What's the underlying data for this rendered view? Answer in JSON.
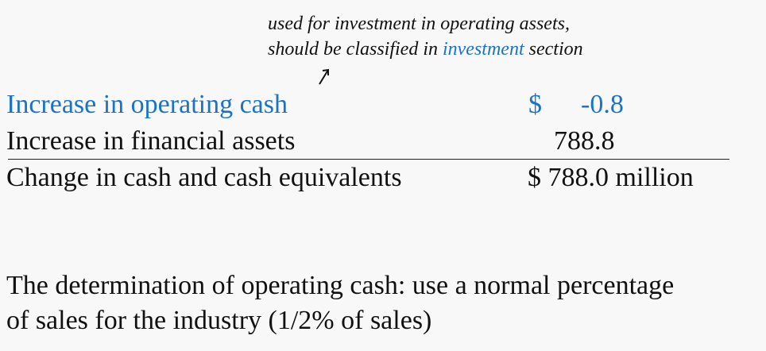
{
  "annotation": {
    "line1": "used for investment in operating assets,",
    "line2_prefix": "should be classified in ",
    "line2_highlight": "investment",
    "line2_suffix": " section",
    "arrow_icon": "arrow-up-right-icon",
    "highlight_color": "#1a73c7"
  },
  "table": {
    "rows": [
      {
        "label": "Increase in operating cash",
        "currency": "$",
        "value": "-0.8"
      },
      {
        "label": "Increase in financial assets",
        "currency": "",
        "value": "788.8"
      },
      {
        "label": "Change in cash and cash equivalents",
        "currency": "",
        "value": "$ 788.0 million"
      }
    ]
  },
  "note": {
    "line1": "The determination of operating cash: use a normal percentage",
    "line2": "of sales for the industry (1/2% of sales)"
  }
}
